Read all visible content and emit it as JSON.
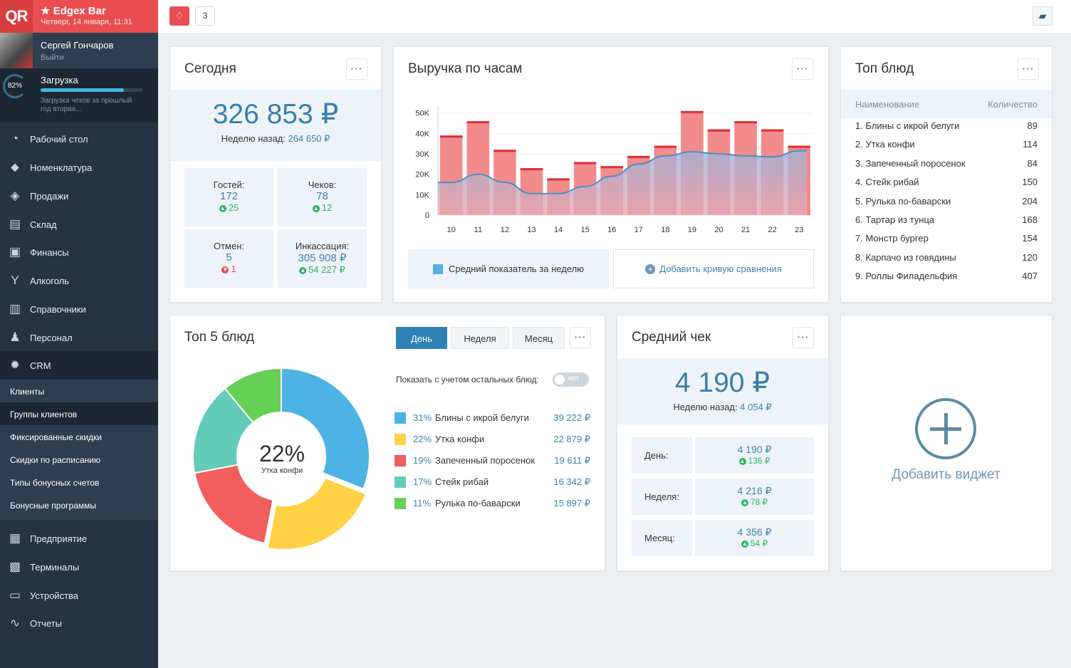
{
  "brand": {
    "logo": "QR",
    "venue": "Edgex Bar",
    "date": "Четверг, 14 января, 11:31"
  },
  "user": {
    "name": "Сергей Гончаров",
    "logout": "Выйти"
  },
  "loading": {
    "percent_label": "82%",
    "progress": 0.82,
    "title": "Загрузка",
    "note": "Загрузка чеков за прошлый год вторая..."
  },
  "nav": [
    {
      "label": "Рабочий стол",
      "icon": "dashboard-icon"
    },
    {
      "label": "Номенклатура",
      "icon": "tag-icon"
    },
    {
      "label": "Продажи",
      "icon": "ticket-icon"
    },
    {
      "label": "Склад",
      "icon": "box-icon"
    },
    {
      "label": "Финансы",
      "icon": "wallet-icon"
    },
    {
      "label": "Алкоголь",
      "icon": "glass-icon"
    },
    {
      "label": "Справочники",
      "icon": "book-icon"
    },
    {
      "label": "Персонал",
      "icon": "people-icon"
    },
    {
      "label": "CRM",
      "icon": "gear-icon"
    }
  ],
  "crm_sub": [
    "Клиенты",
    "Группы клиентов",
    "Фиксированные скидки",
    "Скидки по расписанию",
    "Типы бонусных счетов",
    "Бонусные программы"
  ],
  "nav2": [
    {
      "label": "Предприятие",
      "icon": "shop-icon"
    },
    {
      "label": "Терминалы",
      "icon": "qr-icon"
    },
    {
      "label": "Устройства",
      "icon": "printer-icon"
    },
    {
      "label": "Отчеты",
      "icon": "chart-line-icon"
    }
  ],
  "topbar": {
    "notif_count": "3"
  },
  "today": {
    "title": "Сегодня",
    "total": "326 853 ₽",
    "prev_label": "Неделю назад:",
    "prev_value": "264 650 ₽",
    "stats": [
      {
        "label": "Гостей:",
        "value": "172",
        "delta": "25",
        "dir": "up"
      },
      {
        "label": "Чеков:",
        "value": "78",
        "delta": "12",
        "dir": "up"
      },
      {
        "label": "Отмен:",
        "value": "5",
        "delta": "1",
        "dir": "down"
      },
      {
        "label": "Инкассация:",
        "value": "305 908 ₽",
        "delta": "54 227 ₽",
        "dir": "up"
      }
    ]
  },
  "revenue": {
    "title": "Выручка по часам",
    "legend": "Средний показатель за неделю",
    "add_curve": "Добавить кривую сравнения"
  },
  "chart_data": {
    "type": "bar",
    "categories": [
      "10",
      "11",
      "12",
      "13",
      "14",
      "15",
      "16",
      "17",
      "18",
      "19",
      "20",
      "21",
      "22",
      "23"
    ],
    "series": [
      {
        "values": [
          39000,
          46000,
          32000,
          23000,
          18000,
          26000,
          24000,
          29000,
          34000,
          51000,
          42000,
          46000,
          42000,
          34000
        ]
      },
      {
        "name": "Средний показатель за неделю",
        "type": "area",
        "values": [
          16000,
          20000,
          16000,
          10500,
          10500,
          14000,
          19000,
          25000,
          29000,
          31000,
          30000,
          29000,
          28500,
          31500
        ]
      }
    ],
    "yticks": [
      "50K",
      "40K",
      "30K",
      "20K",
      "10K",
      "0"
    ],
    "ylim": [
      0,
      52000
    ],
    "colors": {
      "bar": "#f28b8b",
      "bar_top": "#d93035",
      "line": "#4a8fc7",
      "area_top": "#9fb3d8",
      "area_bottom": "#e8a9b2"
    }
  },
  "top_dishes": {
    "title": "Топ блюд",
    "col_name": "Наименование",
    "col_qty": "Количество",
    "rows": [
      {
        "name": "1. Блины с икрой белуги",
        "qty": "89"
      },
      {
        "name": "2. Утка конфи",
        "qty": "114"
      },
      {
        "name": "3. Запеченный поросенок",
        "qty": "84"
      },
      {
        "name": "4. Стейк рибай",
        "qty": "150"
      },
      {
        "name": "5. Рулька по-баварски",
        "qty": "204"
      },
      {
        "name": "6. Тартар из тунца",
        "qty": "168"
      },
      {
        "name": "7. Монстр бургер",
        "qty": "154"
      },
      {
        "name": "8. Карпачо из говядины",
        "qty": "120"
      },
      {
        "name": "9. Роллы Филадельфия",
        "qty": "407"
      }
    ]
  },
  "top5": {
    "title": "Топ 5 блюд",
    "tabs": [
      "День",
      "Неделя",
      "Месяц"
    ],
    "toggle_label": "Показать с учетом остальных блюд:",
    "toggle_state": "нет",
    "center_value": "22%",
    "center_label": "Утка конфи",
    "items": [
      {
        "pct": "31%",
        "name": "Блины с икрой белуги",
        "value": "39 222 ₽",
        "color": "#4db3e4",
        "share": 31
      },
      {
        "pct": "22%",
        "name": "Утка конфи",
        "value": "22 879 ₽",
        "color": "#ffd246",
        "share": 22
      },
      {
        "pct": "19%",
        "name": "Запеченный поросенок",
        "value": "19 611 ₽",
        "color": "#f25d5d",
        "share": 19
      },
      {
        "pct": "17%",
        "name": "Стейк рибай",
        "value": "16 342 ₽",
        "color": "#62ccb9",
        "share": 17
      },
      {
        "pct": "11%",
        "name": "Рулька по-баварски",
        "value": "15 897 ₽",
        "color": "#66cf56",
        "share": 11
      }
    ]
  },
  "avg_check": {
    "title": "Средний чек",
    "total": "4 190 ₽",
    "prev_label": "Неделю назад:",
    "prev_value": "4 054 ₽",
    "rows": [
      {
        "label": "День:",
        "value": "4 190 ₽",
        "delta": "136 ₽"
      },
      {
        "label": "Неделя:",
        "value": "4 216 ₽",
        "delta": "78 ₽"
      },
      {
        "label": "Месяц:",
        "value": "4 356 ₽",
        "delta": "54 ₽"
      }
    ]
  },
  "add_widget": {
    "label": "Добавить виджет"
  }
}
